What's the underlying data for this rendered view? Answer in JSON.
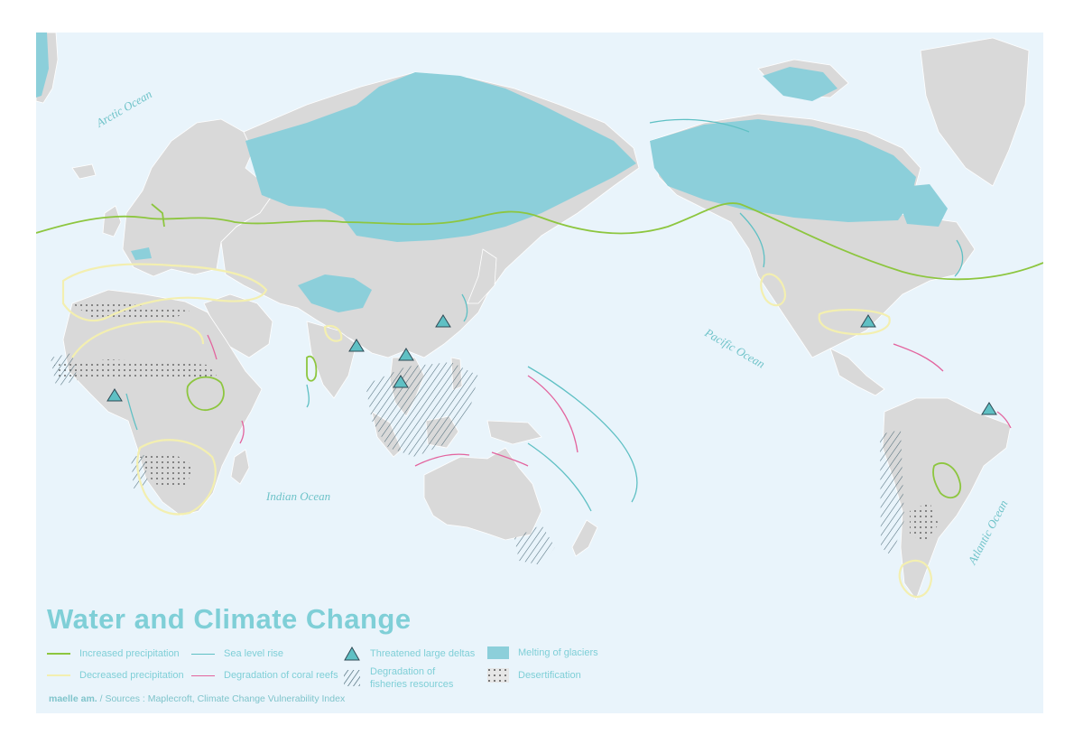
{
  "title": "Water and Climate Change",
  "ocean_labels": {
    "arctic": "Arctic Ocean",
    "pacific": "Pacific Ocean",
    "indian": "Indian Ocean",
    "atlantic": "Atlantic Ocean"
  },
  "legend": {
    "increased_precip": "Increased precipitation",
    "decreased_precip": "Decreased precipitation",
    "sea_level": "Sea level rise",
    "coral": "Degradation of coral reefs",
    "deltas": "Threatened large deltas",
    "fisheries": "Degradation of fisheries resources",
    "glaciers": "Melting of glaciers",
    "desertification": "Desertification"
  },
  "credit": {
    "author": "maelle am.",
    "sources": " / Sources : Maplecroft, Climate Change Vulnerability Index"
  },
  "colors": {
    "ocean": "#e9f4fb",
    "land": "#d9d9d9",
    "glacier": "#8ccfda",
    "increased": "#8dc63f",
    "decreased": "#f3efb0",
    "sea_level": "#5fc0c4",
    "coral": "#e3649e",
    "title": "#7fcfd7"
  }
}
